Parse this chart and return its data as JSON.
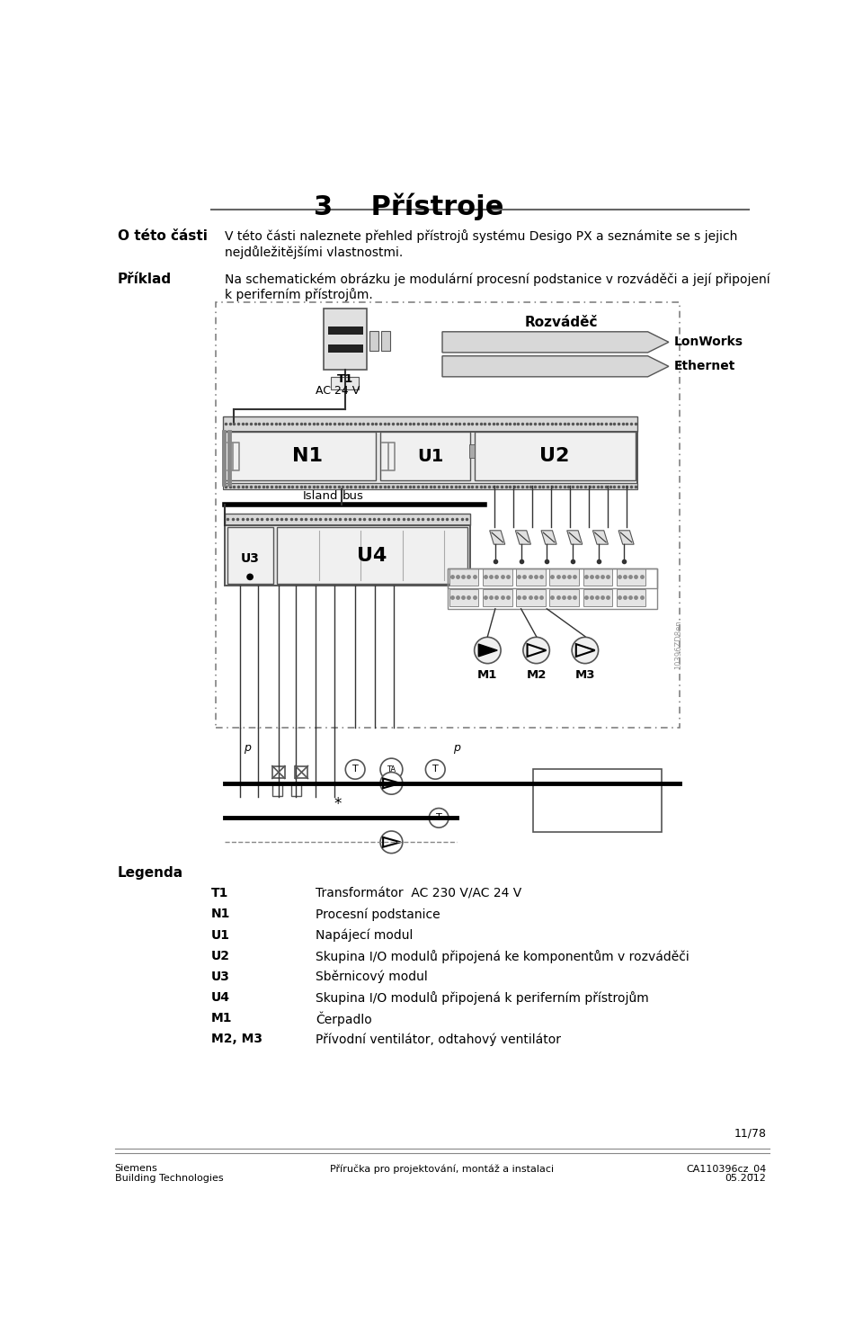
{
  "title": "3    Přístroje",
  "section_label": "O této části",
  "section_text1": "V této části naleznete přehled přístrojů systému Desigo PX a seznámite se s jejich",
  "section_text2": "nejdůležitějšími vlastnostmi.",
  "example_label": "Příklad",
  "example_text1": "Na schematickém obrázku je modulární procesní podstanice v rozváděči a její připojení",
  "example_text2": "k periferním přístrojům.",
  "rozvadec_label": "Rozváděč",
  "lonworks_label": "LonWorks",
  "ethernet_label": "Ethernet",
  "t1_label": "T1",
  "ac24v_label": "AC 24 V",
  "n1_label": "N1",
  "u1_label": "U1",
  "u2_label": "U2",
  "u3_label": "U3",
  "u4_label": "U4",
  "island_label": "Island",
  "bus_label": "bus",
  "m1_label": "M1",
  "m2_label": "M2",
  "m3_label": "M3",
  "p_label": "p",
  "legend_title": "Legenda",
  "legend_items": [
    [
      "T1",
      "Transformátor  AC 230 V/AC 24 V"
    ],
    [
      "N1",
      "Procesní podstanice"
    ],
    [
      "U1",
      "Napájecí modul"
    ],
    [
      "U2",
      "Skupina I/O modulů připojená ke komponentům v rozváděči"
    ],
    [
      "U3",
      "Sběrnicový modul"
    ],
    [
      "U4",
      "Skupina I/O modulů připojená k periferním přístrojům"
    ],
    [
      "M1",
      "Čerpadlo"
    ],
    [
      "M2, M3",
      "Přívodní ventilátor, odtahový ventilátor"
    ]
  ],
  "footer_left1": "Siemens",
  "footer_left2": "Building Technologies",
  "footer_center": "Příručka pro projektování, montáž a instalaci",
  "footer_right1": "CA110396cz_04",
  "footer_right2": "05.2012",
  "page_number": "11/78",
  "watermark": "10396ZD8en",
  "bg_color": "#ffffff",
  "gray_fill": "#d8d8d8",
  "light_fill": "#f0f0f0",
  "mid_fill": "#e4e4e4",
  "border_color": "#555555",
  "dark_border": "#333333"
}
